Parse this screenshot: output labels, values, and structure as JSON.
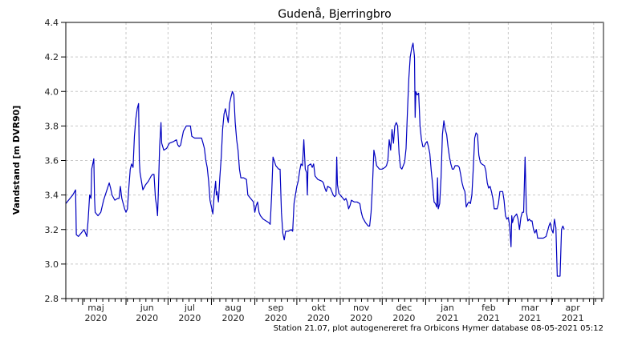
{
  "chart_data": {
    "type": "line",
    "title": "Gudenå, Bjerringbro",
    "xlabel": "",
    "ylabel": "Vandstand [m DVR90]",
    "ylim": [
      2.8,
      4.4
    ],
    "yticks": [
      2.8,
      3.0,
      3.2,
      3.4,
      3.6,
      3.8,
      4.0,
      4.2,
      4.4
    ],
    "grid": true,
    "x_unit": "days since 2020-04-19",
    "xlim": [
      0,
      384
    ],
    "x_ticks": [
      {
        "month": "maj",
        "year": "2020",
        "start_day": 12
      },
      {
        "month": "jun",
        "year": "2020",
        "start_day": 43
      },
      {
        "month": "jul",
        "year": "2020",
        "start_day": 73
      },
      {
        "month": "aug",
        "year": "2020",
        "start_day": 104
      },
      {
        "month": "sep",
        "year": "2020",
        "start_day": 135
      },
      {
        "month": "okt",
        "year": "2020",
        "start_day": 165
      },
      {
        "month": "nov",
        "year": "2020",
        "start_day": 196
      },
      {
        "month": "dec",
        "year": "2020",
        "start_day": 226
      },
      {
        "month": "jan",
        "year": "2021",
        "start_day": 257
      },
      {
        "month": "feb",
        "year": "2021",
        "start_day": 288
      },
      {
        "month": "mar",
        "year": "2021",
        "start_day": 316
      },
      {
        "month": "apr",
        "year": "2021",
        "start_day": 347
      },
      {
        "month": "",
        "year": "",
        "start_day": 377
      }
    ],
    "series": [
      {
        "name": "Vandstand",
        "color": "#0000c0",
        "points": [
          [
            0,
            3.35
          ],
          [
            3,
            3.38
          ],
          [
            5,
            3.4
          ],
          [
            7,
            3.43
          ],
          [
            7.5,
            3.17
          ],
          [
            9,
            3.16
          ],
          [
            11,
            3.18
          ],
          [
            13,
            3.2
          ],
          [
            15,
            3.16
          ],
          [
            16,
            3.26
          ],
          [
            17,
            3.4
          ],
          [
            18,
            3.38
          ],
          [
            18.5,
            3.55
          ],
          [
            20,
            3.61
          ],
          [
            20.5,
            3.38
          ],
          [
            21,
            3.3
          ],
          [
            23,
            3.28
          ],
          [
            25,
            3.3
          ],
          [
            27,
            3.37
          ],
          [
            29,
            3.42
          ],
          [
            31,
            3.47
          ],
          [
            32,
            3.44
          ],
          [
            33,
            3.4
          ],
          [
            35,
            3.37
          ],
          [
            37,
            3.38
          ],
          [
            38,
            3.38
          ],
          [
            39,
            3.45
          ],
          [
            40,
            3.38
          ],
          [
            42,
            3.32
          ],
          [
            43,
            3.3
          ],
          [
            44,
            3.32
          ],
          [
            45,
            3.44
          ],
          [
            46,
            3.55
          ],
          [
            47,
            3.58
          ],
          [
            48,
            3.56
          ],
          [
            49,
            3.74
          ],
          [
            50,
            3.84
          ],
          [
            51,
            3.9
          ],
          [
            52,
            3.93
          ],
          [
            52.5,
            3.6
          ],
          [
            53,
            3.53
          ],
          [
            55,
            3.43
          ],
          [
            57,
            3.46
          ],
          [
            59,
            3.48
          ],
          [
            61,
            3.51
          ],
          [
            62,
            3.52
          ],
          [
            63,
            3.52
          ],
          [
            64,
            3.38
          ],
          [
            65,
            3.33
          ],
          [
            65.5,
            3.28
          ],
          [
            66,
            3.4
          ],
          [
            67,
            3.68
          ],
          [
            68,
            3.82
          ],
          [
            68.5,
            3.7
          ],
          [
            70,
            3.66
          ],
          [
            72,
            3.67
          ],
          [
            74,
            3.7
          ],
          [
            77,
            3.71
          ],
          [
            79,
            3.72
          ],
          [
            80,
            3.69
          ],
          [
            81,
            3.68
          ],
          [
            82,
            3.69
          ],
          [
            83,
            3.73
          ],
          [
            84,
            3.77
          ],
          [
            86,
            3.8
          ],
          [
            88,
            3.8
          ],
          [
            89,
            3.8
          ],
          [
            90,
            3.74
          ],
          [
            92,
            3.73
          ],
          [
            95,
            3.73
          ],
          [
            97,
            3.73
          ],
          [
            98,
            3.7
          ],
          [
            99,
            3.67
          ],
          [
            100,
            3.6
          ],
          [
            101,
            3.56
          ],
          [
            102,
            3.48
          ],
          [
            103,
            3.37
          ],
          [
            104,
            3.33
          ],
          [
            105,
            3.29
          ],
          [
            106,
            3.4
          ],
          [
            107,
            3.48
          ],
          [
            107.5,
            3.4
          ],
          [
            108,
            3.42
          ],
          [
            109,
            3.36
          ],
          [
            110,
            3.5
          ],
          [
            111,
            3.62
          ],
          [
            112,
            3.78
          ],
          [
            113,
            3.87
          ],
          [
            114,
            3.9
          ],
          [
            115,
            3.86
          ],
          [
            116,
            3.82
          ],
          [
            117,
            3.93
          ],
          [
            118,
            3.97
          ],
          [
            119,
            4.0
          ],
          [
            120,
            3.98
          ],
          [
            121,
            3.82
          ],
          [
            122,
            3.72
          ],
          [
            123,
            3.66
          ],
          [
            124,
            3.55
          ],
          [
            125,
            3.5
          ],
          [
            127,
            3.5
          ],
          [
            129,
            3.49
          ],
          [
            130,
            3.4
          ],
          [
            132,
            3.38
          ],
          [
            134,
            3.36
          ],
          [
            135,
            3.3
          ],
          [
            136,
            3.34
          ],
          [
            137,
            3.36
          ],
          [
            138,
            3.3
          ],
          [
            139,
            3.28
          ],
          [
            141,
            3.26
          ],
          [
            143,
            3.25
          ],
          [
            145,
            3.24
          ],
          [
            146,
            3.23
          ],
          [
            147,
            3.4
          ],
          [
            148,
            3.62
          ],
          [
            150,
            3.57
          ],
          [
            152,
            3.55
          ],
          [
            153,
            3.55
          ],
          [
            154,
            3.3
          ],
          [
            155,
            3.18
          ],
          [
            156,
            3.14
          ],
          [
            157,
            3.19
          ],
          [
            159,
            3.19
          ],
          [
            161,
            3.2
          ],
          [
            162,
            3.19
          ],
          [
            163,
            3.35
          ],
          [
            164,
            3.4
          ],
          [
            165,
            3.45
          ],
          [
            166,
            3.48
          ],
          [
            167,
            3.54
          ],
          [
            168,
            3.58
          ],
          [
            169,
            3.57
          ],
          [
            170,
            3.72
          ],
          [
            171,
            3.55
          ],
          [
            172,
            3.53
          ],
          [
            172.5,
            3.4
          ],
          [
            173,
            3.57
          ],
          [
            175,
            3.58
          ],
          [
            176,
            3.56
          ],
          [
            177,
            3.58
          ],
          [
            178,
            3.51
          ],
          [
            180,
            3.49
          ],
          [
            183,
            3.48
          ],
          [
            184,
            3.47
          ],
          [
            185,
            3.44
          ],
          [
            186,
            3.42
          ],
          [
            187,
            3.45
          ],
          [
            189,
            3.44
          ],
          [
            190,
            3.42
          ],
          [
            191,
            3.4
          ],
          [
            192,
            3.39
          ],
          [
            193,
            3.4
          ],
          [
            193.5,
            3.62
          ],
          [
            194,
            3.46
          ],
          [
            195,
            3.41
          ],
          [
            196,
            3.4
          ],
          [
            198,
            3.38
          ],
          [
            199,
            3.37
          ],
          [
            200,
            3.38
          ],
          [
            201,
            3.36
          ],
          [
            202,
            3.32
          ],
          [
            203,
            3.34
          ],
          [
            204,
            3.37
          ],
          [
            206,
            3.36
          ],
          [
            208,
            3.36
          ],
          [
            210,
            3.35
          ],
          [
            211,
            3.3
          ],
          [
            212,
            3.27
          ],
          [
            214,
            3.24
          ],
          [
            216,
            3.22
          ],
          [
            217,
            3.22
          ],
          [
            218,
            3.3
          ],
          [
            219,
            3.45
          ],
          [
            220,
            3.66
          ],
          [
            221,
            3.62
          ],
          [
            222,
            3.57
          ],
          [
            224,
            3.55
          ],
          [
            226,
            3.55
          ],
          [
            228,
            3.56
          ],
          [
            229,
            3.57
          ],
          [
            230,
            3.6
          ],
          [
            231,
            3.72
          ],
          [
            232,
            3.66
          ],
          [
            233,
            3.78
          ],
          [
            234,
            3.7
          ],
          [
            235,
            3.8
          ],
          [
            236,
            3.82
          ],
          [
            237,
            3.8
          ],
          [
            238,
            3.64
          ],
          [
            239,
            3.56
          ],
          [
            240,
            3.55
          ],
          [
            241,
            3.57
          ],
          [
            242,
            3.59
          ],
          [
            243,
            3.67
          ],
          [
            244,
            3.88
          ],
          [
            245,
            4.08
          ],
          [
            246,
            4.2
          ],
          [
            247,
            4.25
          ],
          [
            248,
            4.28
          ],
          [
            249,
            4.2
          ],
          [
            249.5,
            3.85
          ],
          [
            250,
            4.0
          ],
          [
            251,
            3.98
          ],
          [
            252,
            3.99
          ],
          [
            253,
            3.8
          ],
          [
            254,
            3.72
          ],
          [
            255,
            3.68
          ],
          [
            256,
            3.68
          ],
          [
            257,
            3.7
          ],
          [
            258,
            3.71
          ],
          [
            259,
            3.68
          ],
          [
            260,
            3.64
          ],
          [
            261,
            3.54
          ],
          [
            262,
            3.46
          ],
          [
            263,
            3.36
          ],
          [
            264,
            3.35
          ],
          [
            265,
            3.33
          ],
          [
            265.5,
            3.5
          ],
          [
            266,
            3.32
          ],
          [
            267,
            3.35
          ],
          [
            268,
            3.5
          ],
          [
            269,
            3.75
          ],
          [
            270,
            3.83
          ],
          [
            271,
            3.78
          ],
          [
            272,
            3.75
          ],
          [
            273,
            3.68
          ],
          [
            274,
            3.62
          ],
          [
            275,
            3.58
          ],
          [
            276,
            3.55
          ],
          [
            277,
            3.55
          ],
          [
            278,
            3.57
          ],
          [
            280,
            3.57
          ],
          [
            281,
            3.56
          ],
          [
            282,
            3.52
          ],
          [
            283,
            3.47
          ],
          [
            284,
            3.44
          ],
          [
            285,
            3.42
          ],
          [
            286,
            3.33
          ],
          [
            287,
            3.35
          ],
          [
            288,
            3.36
          ],
          [
            289,
            3.35
          ],
          [
            290,
            3.4
          ],
          [
            291,
            3.55
          ],
          [
            292,
            3.73
          ],
          [
            293,
            3.76
          ],
          [
            294,
            3.75
          ],
          [
            295,
            3.63
          ],
          [
            296,
            3.59
          ],
          [
            297,
            3.58
          ],
          [
            299,
            3.57
          ],
          [
            300,
            3.54
          ],
          [
            301,
            3.47
          ],
          [
            302,
            3.44
          ],
          [
            303,
            3.45
          ],
          [
            304,
            3.42
          ],
          [
            305,
            3.38
          ],
          [
            306,
            3.32
          ],
          [
            308,
            3.32
          ],
          [
            309,
            3.35
          ],
          [
            310,
            3.42
          ],
          [
            312,
            3.42
          ],
          [
            313,
            3.37
          ],
          [
            314,
            3.28
          ],
          [
            315,
            3.26
          ],
          [
            316,
            3.27
          ],
          [
            317,
            3.22
          ],
          [
            318,
            3.1
          ],
          [
            318.5,
            3.28
          ],
          [
            319,
            3.24
          ],
          [
            320,
            3.27
          ],
          [
            322,
            3.29
          ],
          [
            323,
            3.26
          ],
          [
            324,
            3.2
          ],
          [
            325,
            3.27
          ],
          [
            326,
            3.3
          ],
          [
            327,
            3.3
          ],
          [
            328,
            3.62
          ],
          [
            329,
            3.3
          ],
          [
            330,
            3.25
          ],
          [
            331,
            3.26
          ],
          [
            332,
            3.25
          ],
          [
            333,
            3.25
          ],
          [
            334,
            3.2
          ],
          [
            335,
            3.18
          ],
          [
            336,
            3.2
          ],
          [
            337,
            3.15
          ],
          [
            339,
            3.15
          ],
          [
            341,
            3.15
          ],
          [
            343,
            3.16
          ],
          [
            345,
            3.22
          ],
          [
            346,
            3.24
          ],
          [
            347,
            3.2
          ],
          [
            348,
            3.18
          ],
          [
            349,
            3.26
          ],
          [
            350,
            3.21
          ],
          [
            351,
            2.93
          ],
          [
            353,
            2.93
          ],
          [
            354,
            3.2
          ],
          [
            355,
            3.22
          ],
          [
            356,
            3.2
          ]
        ]
      }
    ],
    "footnote": "Station 21.07, plot autogenereret fra Orbicons Hymer database 08-05-2021 05:12"
  }
}
